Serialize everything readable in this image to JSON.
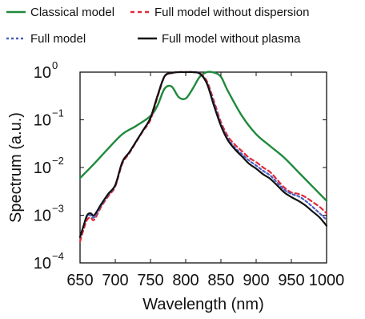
{
  "chart_data": {
    "type": "line",
    "xlabel": "Wavelength (nm)",
    "ylabel": "Spectrum (a.u.)",
    "xlim": [
      650,
      1000
    ],
    "ylim": [
      0.0001,
      1
    ],
    "yscale": "log",
    "grid": false,
    "legend_placement": "top",
    "xticks": [
      650,
      700,
      750,
      800,
      850,
      900,
      950,
      1000
    ],
    "xtick_labels": [
      "650",
      "700",
      "750",
      "800",
      "850",
      "900",
      "950",
      "1000"
    ],
    "yticks": [
      0.0001,
      0.001,
      0.01,
      0.1,
      1
    ],
    "ytick_labels": [
      {
        "base": "10",
        "exp": "−4"
      },
      {
        "base": "10",
        "exp": "−3"
      },
      {
        "base": "10",
        "exp": "−2"
      },
      {
        "base": "10",
        "exp": "−1"
      },
      {
        "base": "10",
        "exp": "0"
      }
    ],
    "series": [
      {
        "name": "Classical model",
        "color": "#1e8a3c",
        "dash": "solid",
        "x": [
          650,
          670,
          690,
          710,
          730,
          750,
          760,
          770,
          780,
          790,
          800,
          810,
          820,
          830,
          840,
          850,
          860,
          880,
          900,
          920,
          940,
          960,
          980,
          1000
        ],
        "y": [
          0.006,
          0.012,
          0.025,
          0.05,
          0.075,
          0.12,
          0.2,
          0.45,
          0.5,
          0.3,
          0.28,
          0.45,
          0.8,
          1.0,
          0.98,
          0.8,
          0.4,
          0.12,
          0.05,
          0.028,
          0.016,
          0.008,
          0.004,
          0.002
        ]
      },
      {
        "name": "Full model without dispersion",
        "color": "#e02a3a",
        "dash": "dashed",
        "x": [
          650,
          655,
          660,
          665,
          670,
          680,
          690,
          700,
          710,
          720,
          730,
          740,
          750,
          760,
          770,
          780,
          790,
          800,
          810,
          820,
          830,
          840,
          850,
          860,
          870,
          880,
          890,
          900,
          910,
          920,
          930,
          940,
          950,
          960,
          970,
          980,
          990,
          1000
        ],
        "y": [
          0.00028,
          0.0005,
          0.0008,
          0.0009,
          0.0008,
          0.0015,
          0.0025,
          0.004,
          0.012,
          0.02,
          0.035,
          0.06,
          0.1,
          0.3,
          0.8,
          0.95,
          1.0,
          1.0,
          1.0,
          0.95,
          0.65,
          0.25,
          0.09,
          0.045,
          0.03,
          0.022,
          0.016,
          0.013,
          0.01,
          0.008,
          0.0055,
          0.0038,
          0.003,
          0.0028,
          0.0024,
          0.0019,
          0.0015,
          0.0011
        ]
      },
      {
        "name": "Full model",
        "color": "#4a5fc4",
        "dash": "dotted",
        "x": [
          650,
          655,
          660,
          665,
          670,
          680,
          690,
          700,
          710,
          720,
          730,
          740,
          750,
          760,
          770,
          780,
          790,
          800,
          810,
          820,
          830,
          840,
          850,
          860,
          870,
          880,
          890,
          900,
          910,
          920,
          930,
          940,
          950,
          960,
          970,
          980,
          990,
          1000
        ],
        "y": [
          0.00035,
          0.0006,
          0.00095,
          0.001,
          0.0009,
          0.0016,
          0.0027,
          0.0042,
          0.013,
          0.021,
          0.036,
          0.062,
          0.11,
          0.32,
          0.82,
          0.96,
          1.0,
          1.0,
          1.0,
          0.94,
          0.6,
          0.22,
          0.08,
          0.04,
          0.026,
          0.019,
          0.014,
          0.011,
          0.0085,
          0.0068,
          0.0048,
          0.0034,
          0.0028,
          0.0025,
          0.002,
          0.0015,
          0.0011,
          0.0008
        ]
      },
      {
        "name": "Full model without plasma",
        "color": "#111111",
        "dash": "solid",
        "x": [
          650,
          655,
          660,
          665,
          670,
          680,
          690,
          700,
          710,
          720,
          730,
          740,
          750,
          760,
          770,
          780,
          790,
          800,
          810,
          820,
          830,
          840,
          850,
          860,
          870,
          880,
          890,
          900,
          910,
          920,
          930,
          940,
          950,
          960,
          970,
          980,
          990,
          1000
        ],
        "y": [
          0.00035,
          0.0006,
          0.001,
          0.0011,
          0.001,
          0.0017,
          0.0028,
          0.0043,
          0.013,
          0.021,
          0.036,
          0.062,
          0.11,
          0.32,
          0.82,
          0.96,
          1.0,
          1.0,
          1.0,
          0.93,
          0.58,
          0.2,
          0.075,
          0.037,
          0.024,
          0.017,
          0.012,
          0.0095,
          0.0072,
          0.0058,
          0.0042,
          0.003,
          0.0024,
          0.002,
          0.0016,
          0.0012,
          0.0009,
          0.0006
        ]
      }
    ]
  }
}
